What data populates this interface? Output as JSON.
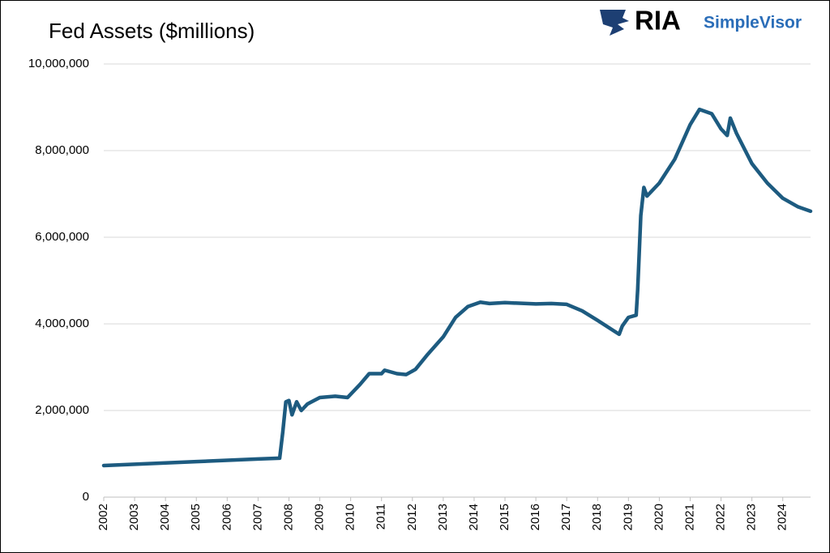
{
  "logo": {
    "brand": "RIA",
    "product": "SimpleVisor"
  },
  "chart_data": {
    "type": "line",
    "title": "Fed Assets ($millions)",
    "x": [
      2002,
      2003,
      2004,
      2005,
      2006,
      2007,
      2007.7,
      2007.8,
      2007.9,
      2008.0,
      2008.1,
      2008.25,
      2008.4,
      2008.6,
      2009.0,
      2009.5,
      2009.9,
      2010.3,
      2010.6,
      2011.0,
      2011.1,
      2011.5,
      2011.8,
      2012.1,
      2012.5,
      2013.0,
      2013.4,
      2013.8,
      2014.2,
      2014.5,
      2015.0,
      2016.0,
      2016.5,
      2017.0,
      2017.5,
      2018.0,
      2018.5,
      2018.7,
      2018.8,
      2019.0,
      2019.25,
      2019.3,
      2019.4,
      2019.5,
      2019.6,
      2020.0,
      2020.5,
      2021.0,
      2021.3,
      2021.7,
      2022.0,
      2022.2,
      2022.3,
      2022.5,
      2023.0,
      2023.5,
      2024.0,
      2024.5,
      2024.9
    ],
    "series": [
      {
        "name": "Fed Assets",
        "color": "#1d5b80",
        "values": [
          730000,
          760000,
          790000,
          820000,
          850000,
          880000,
          900000,
          1500000,
          2200000,
          2230000,
          1900000,
          2200000,
          2000000,
          2150000,
          2300000,
          2330000,
          2300000,
          2600000,
          2850000,
          2850000,
          2930000,
          2850000,
          2830000,
          2950000,
          3300000,
          3700000,
          4150000,
          4400000,
          4500000,
          4470000,
          4490000,
          4460000,
          4470000,
          4450000,
          4300000,
          4080000,
          3850000,
          3760000,
          3950000,
          4150000,
          4200000,
          4800000,
          6500000,
          7150000,
          6950000,
          7250000,
          7800000,
          8600000,
          8950000,
          8850000,
          8500000,
          8350000,
          8750000,
          8400000,
          7700000,
          7250000,
          6900000,
          6700000,
          6600000
        ]
      }
    ],
    "xlim": [
      2002,
      2024.9
    ],
    "xticks": [
      2002,
      2003,
      2004,
      2005,
      2006,
      2007,
      2008,
      2009,
      2010,
      2011,
      2012,
      2013,
      2014,
      2015,
      2016,
      2017,
      2018,
      2019,
      2020,
      2021,
      2022,
      2023,
      2024
    ],
    "ylim": [
      0,
      10000000
    ],
    "yticks": [
      0,
      {
        "value": 2000000,
        "label": "2,000,000"
      },
      {
        "value": 4000000,
        "label": "4,000,000"
      },
      {
        "value": 6000000,
        "label": "6,000,000"
      },
      {
        "value": 8000000,
        "label": "8,000,000"
      },
      {
        "value": 10000000,
        "label": "10,000,000"
      }
    ],
    "grid": true
  }
}
